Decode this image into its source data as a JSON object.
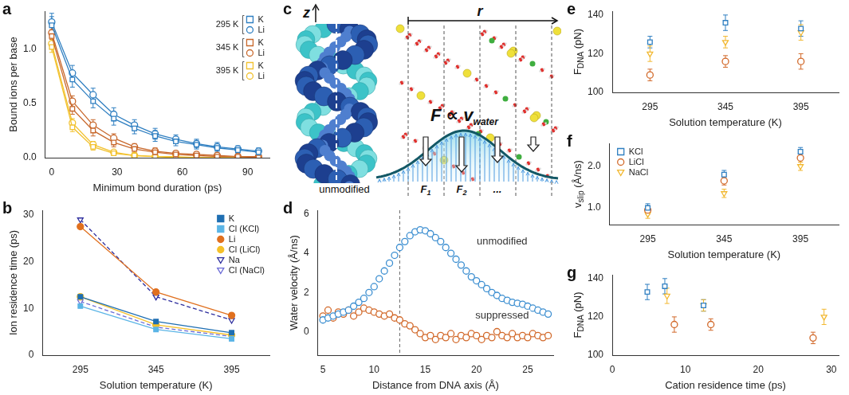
{
  "chart_data": [
    {
      "panel": "a",
      "type": "line",
      "x_label": "Minimum bond duration (ps)",
      "y_label": "Bound ions per base",
      "x": [
        0,
        9.5,
        19,
        28.5,
        38,
        47.5,
        57,
        66.5,
        76,
        85.5,
        95
      ],
      "xlim": [
        -3,
        100
      ],
      "xticks": [
        0,
        30,
        60,
        90
      ],
      "ylim": [
        0,
        1.35
      ],
      "yticks": [
        {
          "value": 0,
          "label": "0.0"
        },
        {
          "value": 0.5,
          "label": "0.5"
        },
        {
          "value": 1,
          "label": "1.0"
        }
      ],
      "grid": false,
      "legend": "upper right",
      "series": [
        {
          "name": "K",
          "temperature": "295 K",
          "color": "#2f7fc1",
          "marker": "open_square",
          "values": [
            1.22,
            0.72,
            0.52,
            0.36,
            0.27,
            0.2,
            0.15,
            0.12,
            0.09,
            0.07,
            0.05
          ],
          "errors": [
            0.08,
            0.07,
            0.06,
            0.06,
            0.05,
            0.05,
            0.04,
            0.04,
            0.04,
            0.03,
            0.03
          ]
        },
        {
          "name": "Li",
          "temperature": "295 K",
          "color": "#2f7fc1",
          "marker": "open_circle",
          "values": [
            1.25,
            0.78,
            0.58,
            0.4,
            0.3,
            0.22,
            0.17,
            0.13,
            0.1,
            0.08,
            0.06
          ],
          "errors": [
            0.08,
            0.07,
            0.06,
            0.06,
            0.05,
            0.05,
            0.04,
            0.04,
            0.04,
            0.03,
            0.03
          ]
        },
        {
          "name": "K",
          "temperature": "345 K",
          "color": "#c8682c",
          "marker": "open_square",
          "values": [
            1.12,
            0.45,
            0.25,
            0.14,
            0.08,
            0.05,
            0.03,
            0.02,
            0.01,
            0.01,
            0
          ],
          "errors": [
            0.06,
            0.05,
            0.05,
            0.04,
            0.03,
            0.03,
            0.02,
            0.02,
            0.02,
            0.01,
            0.01
          ]
        },
        {
          "name": "Li",
          "temperature": "345 K",
          "color": "#c8682c",
          "marker": "open_circle",
          "values": [
            1.15,
            0.52,
            0.3,
            0.18,
            0.1,
            0.06,
            0.04,
            0.03,
            0.02,
            0.01,
            0.01
          ],
          "errors": [
            0.06,
            0.05,
            0.05,
            0.04,
            0.03,
            0.03,
            0.02,
            0.02,
            0.02,
            0.01,
            0.01
          ]
        },
        {
          "name": "K",
          "temperature": "395 K",
          "color": "#f2c230",
          "marker": "open_square",
          "values": [
            1.02,
            0.28,
            0.1,
            0.04,
            0.02,
            0.01,
            0,
            0,
            0,
            0,
            0
          ],
          "errors": [
            0.05,
            0.04,
            0.03,
            0.02,
            0.02,
            0.01,
            0.01,
            0.01,
            0.01,
            0.01,
            0.01
          ]
        },
        {
          "name": "Li",
          "temperature": "395 K",
          "color": "#f2c230",
          "marker": "open_circle",
          "values": [
            1.05,
            0.32,
            0.12,
            0.05,
            0.02,
            0.01,
            0.01,
            0,
            0,
            0,
            0
          ],
          "errors": [
            0.05,
            0.04,
            0.03,
            0.02,
            0.02,
            0.01,
            0.01,
            0.01,
            0.01,
            0.01,
            0.01
          ]
        }
      ]
    },
    {
      "panel": "b",
      "type": "line",
      "x_label": "Solution temperature (K)",
      "y_label": "Ion residence time (ps)",
      "x": [
        295,
        345,
        395
      ],
      "xlim": [
        270,
        420
      ],
      "xticks": [
        295,
        345,
        395
      ],
      "ylim": [
        0,
        31
      ],
      "yticks": [
        0,
        10,
        20,
        30
      ],
      "grid": false,
      "legend": "upper right",
      "series": [
        {
          "name": "K",
          "color": "#1f6fb2",
          "marker": "square",
          "line_style": "solid",
          "values": [
            12.5,
            7.2,
            4.8
          ]
        },
        {
          "name": "Cl (KCl)",
          "color": "#5bb5e6",
          "marker": "square",
          "line_style": "solid",
          "values": [
            10.5,
            5.5,
            3.5
          ]
        },
        {
          "name": "Li",
          "color": "#e0701f",
          "marker": "circle",
          "line_style": "solid",
          "values": [
            27.5,
            13.5,
            8.5
          ]
        },
        {
          "name": "Cl (LiCl)",
          "color": "#f5c02a",
          "marker": "circle",
          "line_style": "solid",
          "values": [
            12.5,
            6.5,
            4.3
          ]
        },
        {
          "name": "Na",
          "color": "#2e2e9e",
          "marker": "open_triangle_down",
          "line_style": "dashed",
          "values": [
            29,
            12.5,
            7.5
          ]
        },
        {
          "name": "Cl (NaCl)",
          "color": "#6b6bd6",
          "marker": "open_triangle_down",
          "line_style": "dashed",
          "values": [
            11.5,
            6.0,
            4.0
          ]
        }
      ]
    },
    {
      "panel": "d",
      "type": "scatter",
      "x_label": "Distance from DNA axis (Å)",
      "y_label": "Water velocity (Å/ns)",
      "x": [
        5,
        5.5,
        6,
        6.5,
        7,
        7.5,
        8,
        8.5,
        9,
        9.5,
        10,
        10.5,
        11,
        11.5,
        12,
        12.5,
        13,
        13.5,
        14,
        14.5,
        15,
        15.5,
        16,
        16.5,
        17,
        17.5,
        18,
        18.5,
        19,
        19.5,
        20,
        20.5,
        21,
        21.5,
        22,
        22.5,
        23,
        23.5,
        24,
        24.5,
        25,
        25.5,
        26,
        26.5,
        27
      ],
      "xlim": [
        4.5,
        27.5
      ],
      "xticks": [
        5,
        10,
        15,
        20,
        25
      ],
      "ylim": [
        -1.2,
        6.2
      ],
      "yticks": [
        0,
        2,
        4,
        6
      ],
      "grid": false,
      "reference_lines": [
        {
          "x": 12.5,
          "line_style": "dashed"
        }
      ],
      "annotations": [
        {
          "text": "unmodified",
          "x": 22.5,
          "y": 4.6
        },
        {
          "text": "suppressed",
          "x": 22.5,
          "y": 0.8
        }
      ],
      "series": [
        {
          "name": "unmodified",
          "color": "#3d8fd1",
          "marker": "open_circle",
          "values": [
            0.6,
            0.7,
            0.8,
            0.9,
            1.0,
            1.1,
            1.3,
            1.5,
            1.7,
            2.0,
            2.3,
            2.7,
            3.1,
            3.5,
            3.9,
            4.3,
            4.6,
            4.9,
            5.1,
            5.2,
            5.15,
            5.0,
            4.8,
            4.6,
            4.3,
            4.0,
            3.7,
            3.4,
            3.1,
            2.8,
            2.6,
            2.4,
            2.2,
            2.0,
            1.85,
            1.7,
            1.6,
            1.5,
            1.45,
            1.4,
            1.3,
            1.2,
            1.1,
            1.0,
            0.9
          ]
        },
        {
          "name": "suppressed",
          "color": "#d2692a",
          "marker": "open_circle",
          "values": [
            0.8,
            1.1,
            0.7,
            1.0,
            0.9,
            1.1,
            0.8,
            1.0,
            1.2,
            1.1,
            1.0,
            0.9,
            0.8,
            0.9,
            0.7,
            0.6,
            0.4,
            0.3,
            0.1,
            -0.1,
            -0.3,
            -0.2,
            -0.4,
            -0.2,
            -0.3,
            -0.1,
            -0.4,
            -0.2,
            -0.3,
            -0.1,
            -0.2,
            -0.4,
            -0.2,
            -0.3,
            0.0,
            -0.2,
            -0.3,
            -0.1,
            -0.3,
            -0.2,
            -0.3,
            -0.1,
            -0.2,
            -0.3,
            -0.2
          ]
        }
      ]
    },
    {
      "panel": "e",
      "type": "scatter",
      "x_label": "Solution temperature (K)",
      "y_label": {
        "text": "F",
        "subscript": "DNA",
        "suffix": " (pN)"
      },
      "x": [
        295,
        345,
        395
      ],
      "xlim": [
        270,
        420
      ],
      "xticks": [
        295,
        345,
        395
      ],
      "ylim": [
        100,
        142
      ],
      "yticks": [
        100,
        120,
        140
      ],
      "grid": false,
      "series": [
        {
          "name": "KCl",
          "color": "#2f7fc1",
          "marker": "open_square",
          "values": [
            126,
            136,
            133
          ],
          "errors": [
            3,
            4,
            4
          ]
        },
        {
          "name": "LiCl",
          "color": "#d2692a",
          "marker": "open_circle",
          "values": [
            109,
            116,
            116
          ],
          "errors": [
            3,
            3,
            4
          ]
        },
        {
          "name": "NaCl",
          "color": "#f2b830",
          "marker": "open_triangle_down",
          "values": [
            120,
            126,
            131
          ],
          "errors": [
            4,
            3,
            4
          ]
        }
      ]
    },
    {
      "panel": "f",
      "type": "scatter",
      "x_label": "Solution temperature (K)",
      "y_label": {
        "text": "v",
        "subscript": "slip",
        "suffix": " (Å/ns)"
      },
      "x": [
        295,
        345,
        395
      ],
      "xlim": [
        270,
        420
      ],
      "xticks": [
        295,
        345,
        395
      ],
      "ylim": [
        0.6,
        2.55
      ],
      "yticks": [
        {
          "value": 1,
          "label": "1.0"
        },
        {
          "value": 2,
          "label": "2.0"
        }
      ],
      "grid": false,
      "legend": "upper left",
      "series": [
        {
          "name": "KCl",
          "color": "#2f7fc1",
          "marker": "open_square",
          "values": [
            1.0,
            1.8,
            2.35
          ],
          "errors": [
            0.1,
            0.1,
            0.1
          ]
        },
        {
          "name": "LiCl",
          "color": "#d2692a",
          "marker": "open_circle",
          "values": [
            0.95,
            1.65,
            2.2
          ],
          "errors": [
            0.1,
            0.1,
            0.1
          ]
        },
        {
          "name": "NaCl",
          "color": "#f2b830",
          "marker": "open_triangle_down",
          "values": [
            0.85,
            1.35,
            2.0
          ],
          "errors": [
            0.1,
            0.1,
            0.1
          ]
        }
      ]
    },
    {
      "panel": "g",
      "type": "scatter",
      "x_label": "Cation residence time (ps)",
      "y_label": {
        "text": "F",
        "subscript": "DNA",
        "suffix": " (pN)"
      },
      "xlim": [
        0,
        31
      ],
      "xticks": [
        0,
        10,
        20,
        30
      ],
      "ylim": [
        100,
        142
      ],
      "yticks": [
        100,
        120,
        140
      ],
      "grid": false,
      "series": [
        {
          "name": "KCl",
          "color": "#2f7fc1",
          "marker": "open_square",
          "x": [
            12.5,
            7.2,
            4.8
          ],
          "values": [
            126,
            136,
            133
          ],
          "errors": [
            3,
            4,
            4
          ]
        },
        {
          "name": "LiCl",
          "color": "#d2692a",
          "marker": "open_circle",
          "x": [
            27.5,
            13.5,
            8.5
          ],
          "values": [
            109,
            116,
            116
          ],
          "errors": [
            3,
            3,
            4
          ]
        },
        {
          "name": "NaCl",
          "color": "#f2b830",
          "marker": "open_triangle_down",
          "x": [
            29,
            12.5,
            7.5
          ],
          "values": [
            120,
            126,
            131
          ],
          "errors": [
            4,
            3,
            4
          ]
        }
      ]
    }
  ],
  "diagram": {
    "panel": "c",
    "axis_labels": {
      "vertical": "z",
      "horizontal": "r"
    },
    "equation": {
      "text": "F ∝ v",
      "subscript": "water"
    },
    "region_label": "unmodified",
    "bins": [
      {
        "text": "F",
        "subscript": "1"
      },
      {
        "text": "F",
        "subscript": "2"
      },
      {
        "text": "..."
      }
    ]
  }
}
